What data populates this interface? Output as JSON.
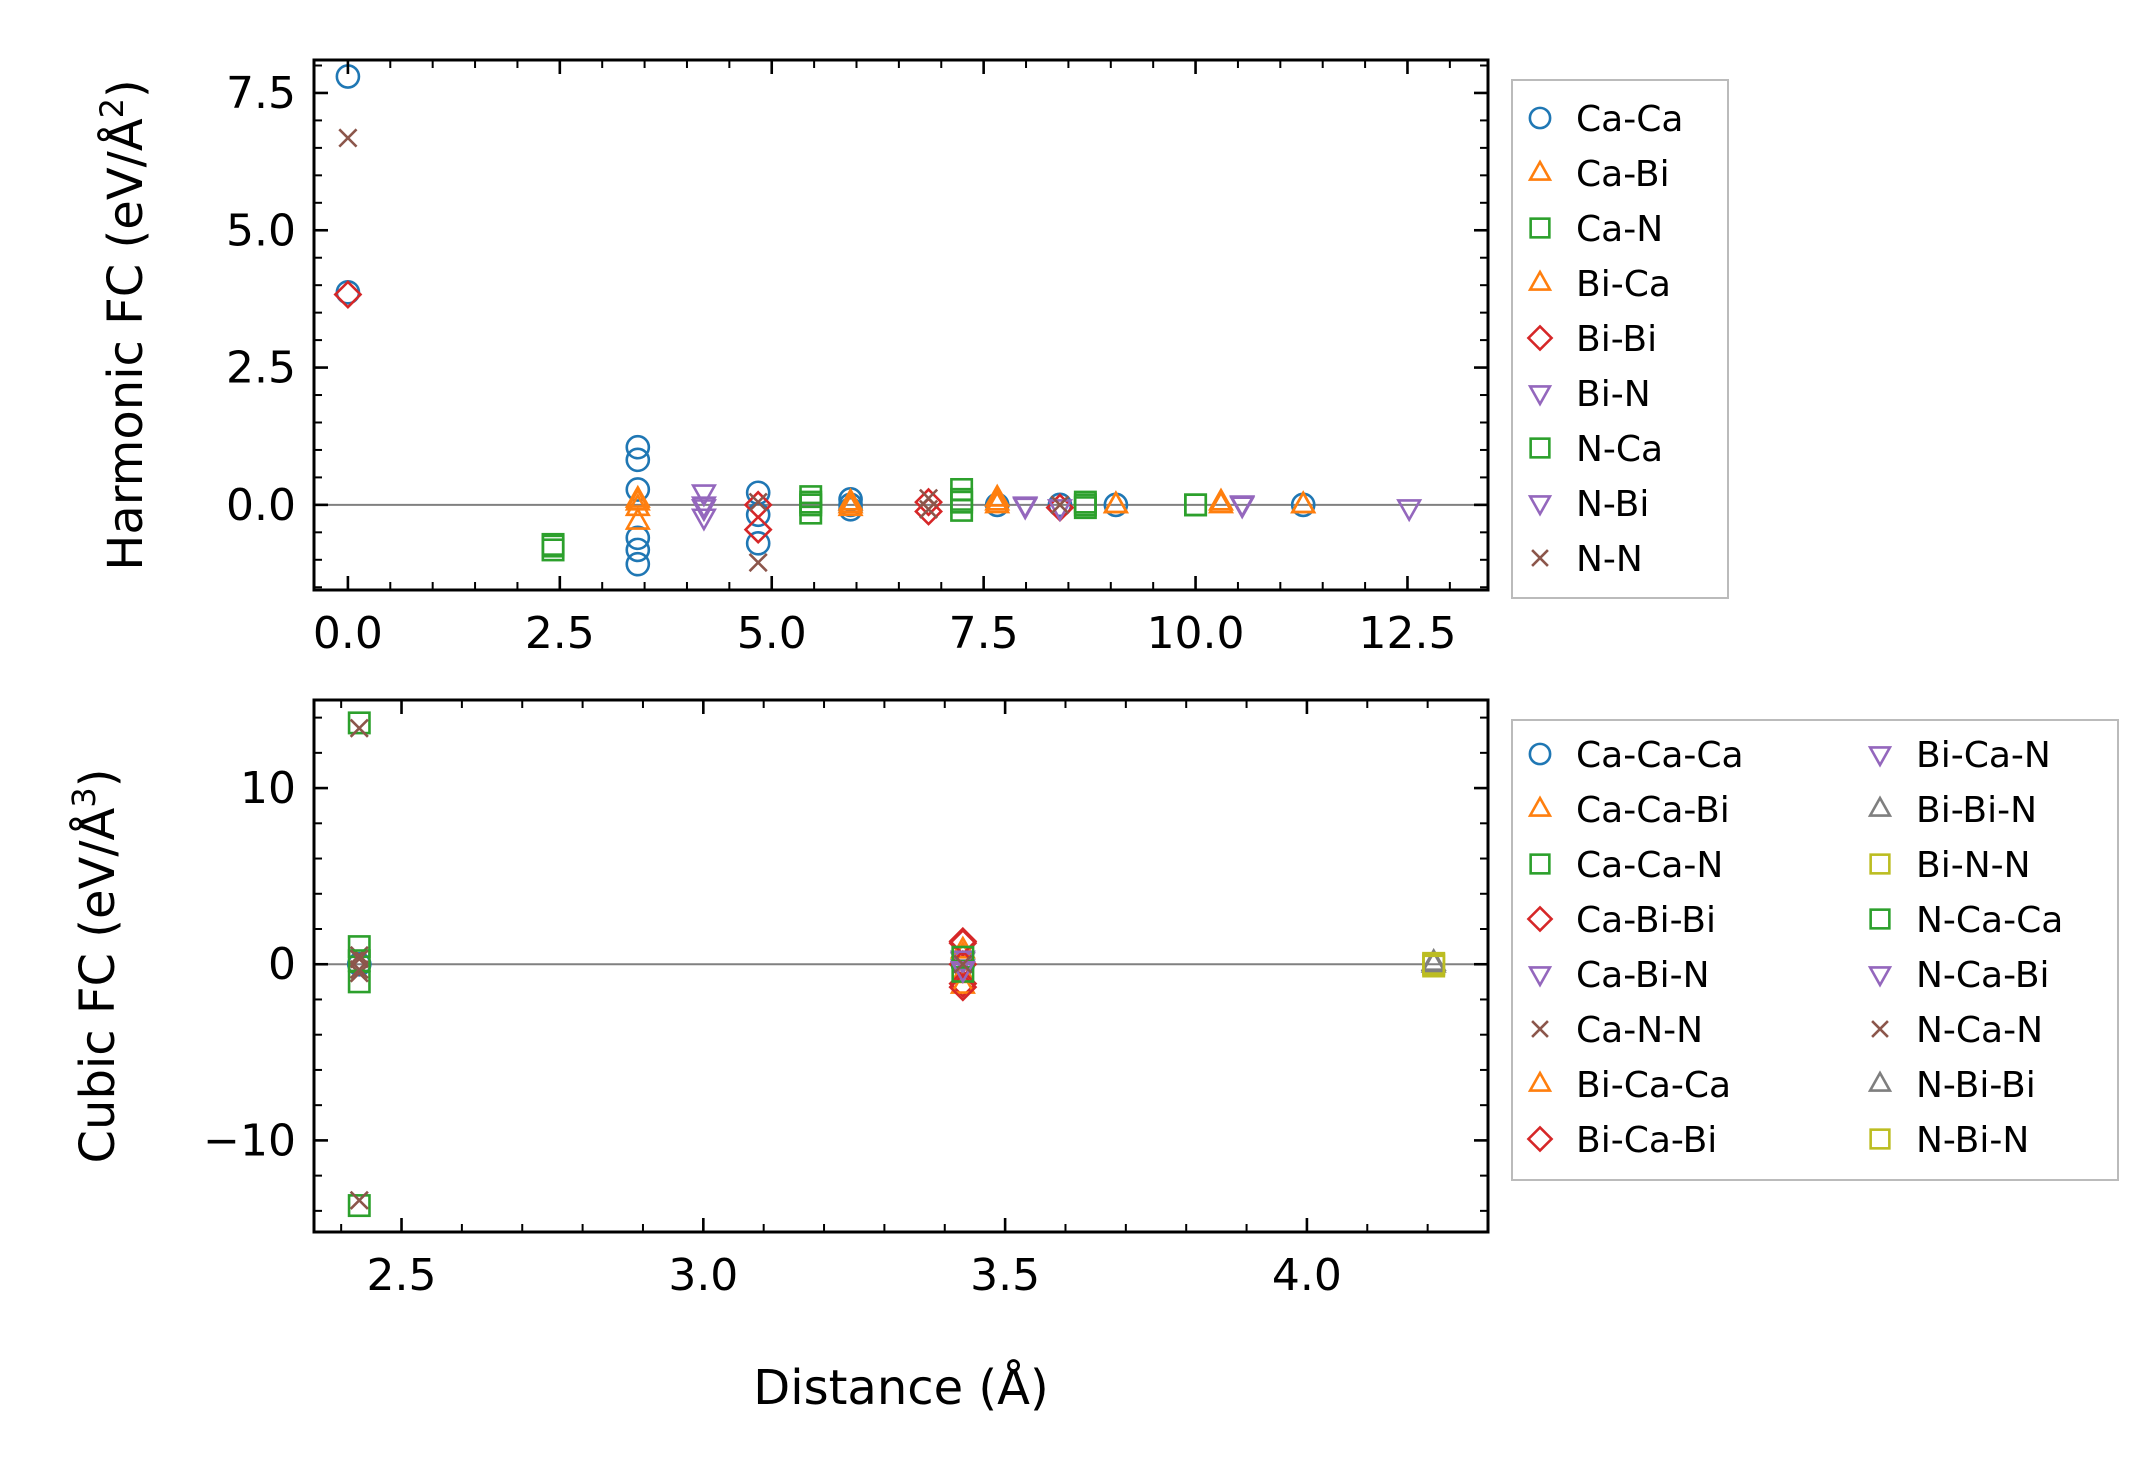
{
  "chart_data": [
    {
      "type": "scatter",
      "ylabel": "Harmonic FC (eV/Å²)",
      "ylabel_main": "Harmonic FC (eV/Å",
      "ylabel_sup": "2",
      "ylabel_close": ")",
      "xlabel": "",
      "xlim": [
        -0.4,
        13.45
      ],
      "ylim": [
        -1.55,
        8.1
      ],
      "xticks": [
        0.0,
        2.5,
        5.0,
        7.5,
        10.0,
        12.5
      ],
      "xtick_labels": [
        "0.0",
        "2.5",
        "5.0",
        "7.5",
        "10.0",
        "12.5"
      ],
      "yticks": [
        0.0,
        2.5,
        5.0,
        7.5
      ],
      "ytick_labels": [
        "0.0",
        "2.5",
        "5.0",
        "7.5"
      ],
      "zero_line": true,
      "legend_position": "right",
      "series": [
        {
          "name": "Ca-Ca",
          "marker": "circle",
          "color": "#1f77b4",
          "points": [
            [
              0.0,
              7.8
            ],
            [
              0.0,
              3.87
            ],
            [
              3.42,
              1.05
            ],
            [
              3.42,
              0.82
            ],
            [
              3.42,
              0.28
            ],
            [
              3.42,
              -0.6
            ],
            [
              3.42,
              -0.82
            ],
            [
              3.42,
              -1.08
            ],
            [
              4.84,
              0.22
            ],
            [
              4.84,
              -0.18
            ],
            [
              4.84,
              -0.7
            ],
            [
              5.93,
              0.1
            ],
            [
              5.93,
              0.0
            ],
            [
              5.93,
              -0.08
            ],
            [
              7.66,
              0.0
            ],
            [
              8.4,
              0.0
            ],
            [
              9.06,
              0.0
            ],
            [
              11.27,
              0.0
            ]
          ]
        },
        {
          "name": "Ca-Bi",
          "marker": "triangle-up",
          "color": "#ff7f0e",
          "points": [
            [
              3.42,
              0.1
            ],
            [
              3.42,
              -0.05
            ],
            [
              3.42,
              -0.3
            ],
            [
              5.93,
              0.05
            ],
            [
              5.93,
              -0.05
            ],
            [
              7.66,
              0.12
            ],
            [
              7.66,
              0.0
            ],
            [
              9.06,
              0.0
            ],
            [
              10.3,
              0.05
            ],
            [
              11.27,
              0.0
            ]
          ]
        },
        {
          "name": "Ca-N",
          "marker": "square",
          "color": "#2ca02c",
          "points": [
            [
              2.42,
              -0.72
            ],
            [
              2.42,
              -0.82
            ],
            [
              5.46,
              0.15
            ],
            [
              5.46,
              0.0
            ],
            [
              5.46,
              -0.15
            ],
            [
              7.24,
              0.28
            ],
            [
              7.24,
              0.05
            ],
            [
              7.24,
              -0.1
            ],
            [
              8.7,
              0.05
            ],
            [
              8.7,
              -0.05
            ],
            [
              10.0,
              0.0
            ]
          ]
        },
        {
          "name": "Bi-Ca",
          "marker": "triangle-up",
          "color": "#ff7f0e",
          "points": [
            [
              3.42,
              0.05
            ],
            [
              5.93,
              0.0
            ],
            [
              7.66,
              0.05
            ],
            [
              9.06,
              0.0
            ],
            [
              10.3,
              0.0
            ],
            [
              11.27,
              0.0
            ]
          ]
        },
        {
          "name": "Bi-Bi",
          "marker": "diamond",
          "color": "#d62728",
          "points": [
            [
              0.0,
              3.83
            ],
            [
              4.84,
              0.0
            ],
            [
              4.84,
              -0.45
            ],
            [
              6.85,
              0.05
            ],
            [
              6.85,
              -0.12
            ],
            [
              8.4,
              -0.05
            ]
          ]
        },
        {
          "name": "Bi-N",
          "marker": "triangle-down",
          "color": "#9467bd",
          "points": [
            [
              4.2,
              0.22
            ],
            [
              4.2,
              -0.05
            ],
            [
              4.2,
              -0.22
            ],
            [
              7.99,
              0.0
            ],
            [
              8.4,
              -0.05
            ],
            [
              10.55,
              0.0
            ],
            [
              12.52,
              -0.05
            ]
          ]
        },
        {
          "name": "N-Ca",
          "marker": "square",
          "color": "#2ca02c",
          "points": [
            [
              2.42,
              -0.75
            ],
            [
              5.46,
              0.05
            ],
            [
              7.24,
              0.1
            ],
            [
              8.7,
              0.0
            ],
            [
              10.0,
              0.0
            ]
          ]
        },
        {
          "name": "N-Bi",
          "marker": "triangle-down",
          "color": "#9467bd",
          "points": [
            [
              4.2,
              0.0
            ],
            [
              7.99,
              -0.02
            ],
            [
              10.55,
              0.02
            ]
          ]
        },
        {
          "name": "N-N",
          "marker": "x",
          "color": "#8c564b",
          "points": [
            [
              0.0,
              6.68
            ],
            [
              4.84,
              0.05
            ],
            [
              4.84,
              -1.05
            ],
            [
              6.85,
              0.12
            ],
            [
              6.85,
              -0.08
            ],
            [
              8.4,
              0.0
            ]
          ]
        }
      ]
    },
    {
      "type": "scatter",
      "ylabel": "Cubic FC (eV/Å³)",
      "ylabel_main": "Cubic FC (eV/Å",
      "ylabel_sup": "3",
      "ylabel_close": ")",
      "xlabel": "Distance (Å)",
      "xlim": [
        2.355,
        4.3
      ],
      "ylim": [
        -15.2,
        15.0
      ],
      "xticks": [
        2.5,
        3.0,
        3.5,
        4.0
      ],
      "xtick_labels": [
        "2.5",
        "3.0",
        "3.5",
        "4.0"
      ],
      "yticks": [
        -10,
        0,
        10
      ],
      "ytick_labels": [
        "−10",
        "0",
        "10"
      ],
      "zero_line": true,
      "legend_position": "right",
      "series": [
        {
          "name": "Ca-Ca-Ca",
          "marker": "circle",
          "color": "#1f77b4",
          "points": [
            [
              2.43,
              0.0
            ],
            [
              3.43,
              0.0
            ]
          ]
        },
        {
          "name": "Ca-Ca-Bi",
          "marker": "triangle-up",
          "color": "#ff7f0e",
          "points": [
            [
              3.43,
              0.5
            ],
            [
              3.43,
              -0.6
            ]
          ]
        },
        {
          "name": "Ca-Ca-N",
          "marker": "square",
          "color": "#2ca02c",
          "points": [
            [
              2.43,
              13.7
            ],
            [
              2.43,
              1.0
            ],
            [
              2.43,
              -1.0
            ],
            [
              2.43,
              -13.7
            ]
          ]
        },
        {
          "name": "Ca-Bi-Bi",
          "marker": "diamond",
          "color": "#d62728",
          "points": [
            [
              3.43,
              1.2
            ],
            [
              3.43,
              -1.1
            ]
          ]
        },
        {
          "name": "Ca-Bi-N",
          "marker": "triangle-down",
          "color": "#9467bd",
          "points": [
            [
              3.43,
              0.2
            ],
            [
              3.43,
              -0.2
            ]
          ]
        },
        {
          "name": "Ca-N-N",
          "marker": "x",
          "color": "#8c564b",
          "points": [
            [
              2.43,
              13.4
            ],
            [
              2.43,
              0.5
            ],
            [
              2.43,
              -0.5
            ],
            [
              2.43,
              -13.4
            ]
          ]
        },
        {
          "name": "Bi-Ca-Ca",
          "marker": "triangle-up",
          "color": "#ff7f0e",
          "points": [
            [
              3.43,
              0.8
            ],
            [
              3.43,
              -1.2
            ]
          ]
        },
        {
          "name": "Bi-Ca-Bi",
          "marker": "diamond",
          "color": "#d62728",
          "points": [
            [
              3.43,
              1.3
            ],
            [
              3.43,
              -1.3
            ],
            [
              3.43,
              0.0
            ]
          ]
        },
        {
          "name": "Bi-Ca-N",
          "marker": "triangle-down",
          "color": "#9467bd",
          "points": [
            [
              3.43,
              0.3
            ]
          ]
        },
        {
          "name": "Bi-Bi-N",
          "marker": "triangle-up",
          "color": "#7f7f7f",
          "points": [
            [
              4.21,
              0.0
            ]
          ]
        },
        {
          "name": "Bi-N-N",
          "marker": "square",
          "color": "#bcbd22",
          "points": [
            [
              4.21,
              0.0
            ]
          ]
        },
        {
          "name": "N-Ca-Ca",
          "marker": "square",
          "color": "#2ca02c",
          "points": [
            [
              3.43,
              0.4
            ],
            [
              3.43,
              -0.4
            ],
            [
              2.43,
              0.2
            ]
          ]
        },
        {
          "name": "N-Ca-Bi",
          "marker": "triangle-down",
          "color": "#9467bd",
          "points": [
            [
              3.43,
              -0.3
            ]
          ]
        },
        {
          "name": "N-Ca-N",
          "marker": "x",
          "color": "#8c564b",
          "points": [
            [
              2.43,
              0.3
            ],
            [
              2.43,
              -0.3
            ],
            [
              3.43,
              0.0
            ]
          ]
        },
        {
          "name": "N-Bi-Bi",
          "marker": "triangle-up",
          "color": "#7f7f7f",
          "points": [
            [
              4.21,
              0.1
            ]
          ]
        },
        {
          "name": "N-Bi-N",
          "marker": "square",
          "color": "#bcbd22",
          "points": [
            [
              4.21,
              -0.1
            ],
            [
              4.21,
              0.05
            ]
          ]
        }
      ]
    }
  ]
}
